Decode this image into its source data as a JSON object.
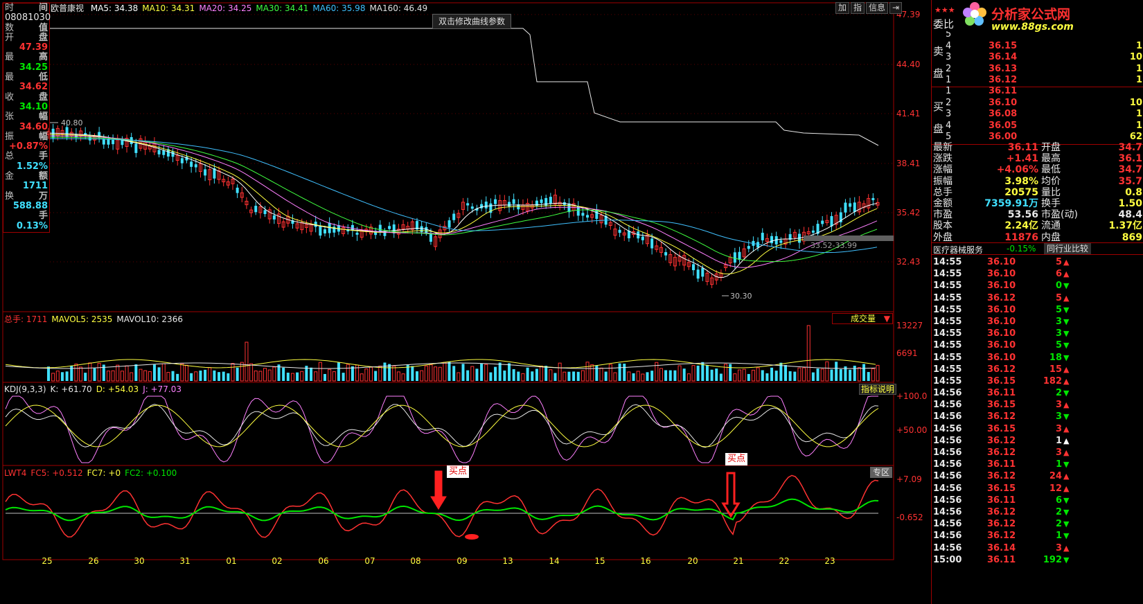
{
  "header": {
    "stock_name": "欧普康视",
    "ma_items": [
      {
        "label": "MA5: 34.38",
        "color": "#ffffff"
      },
      {
        "label": "MA10: 34.31",
        "color": "#ffff40"
      },
      {
        "label": "MA20: 34.25",
        "color": "#ff80ff"
      },
      {
        "label": "MA30: 34.41",
        "color": "#40ff40"
      },
      {
        "label": "MA60: 35.98",
        "color": "#40c0ff"
      },
      {
        "label": "MA160: 46.49",
        "color": "#e0e0e0"
      }
    ],
    "buttons": [
      "加",
      "指",
      "信息"
    ],
    "tooltip": "双击修改曲线参数"
  },
  "info_panel": {
    "rows": [
      {
        "l": "时",
        "r": "间",
        "lc": "#c0c0c0",
        "rc": "#c0c0c0"
      },
      {
        "l": "08081030",
        "r": "",
        "lc": "#e8e8e8",
        "rc": "#c0c0c0"
      },
      {
        "l": "数",
        "r": "值",
        "lc": "#c0c0c0",
        "rc": "#c0c0c0"
      },
      {
        "l": "开",
        "r": "盘",
        "lc": "#c0c0c0",
        "rc": "#c0c0c0"
      },
      {
        "l": "",
        "r": "47.39",
        "lc": "#c0c0c0",
        "rc": "#ff3232"
      },
      {
        "l": "最",
        "r": "高",
        "lc": "#c0c0c0",
        "rc": "#c0c0c0"
      },
      {
        "l": "",
        "r": "34.25",
        "lc": "#c0c0c0",
        "rc": "#00e600"
      },
      {
        "l": "最",
        "r": "低",
        "lc": "#c0c0c0",
        "rc": "#c0c0c0"
      },
      {
        "l": "",
        "r": "34.62",
        "lc": "#c0c0c0",
        "rc": "#ff3232"
      },
      {
        "l": "收",
        "r": "盘",
        "lc": "#c0c0c0",
        "rc": "#c0c0c0"
      },
      {
        "l": "",
        "r": "34.10",
        "lc": "#c0c0c0",
        "rc": "#00e600"
      },
      {
        "l": "张",
        "r": "幅",
        "lc": "#c0c0c0",
        "rc": "#c0c0c0"
      },
      {
        "l": "",
        "r": "34.60",
        "lc": "#c0c0c0",
        "rc": "#ff3232"
      },
      {
        "l": "振",
        "r": "幅",
        "lc": "#c0c0c0",
        "rc": "#c0c0c0"
      },
      {
        "l": "",
        "r": "+0.87%",
        "lc": "#c0c0c0",
        "rc": "#ff3232"
      },
      {
        "l": "总",
        "r": "手",
        "lc": "#c0c0c0",
        "rc": "#c0c0c0"
      },
      {
        "l": "",
        "r": "1.52%",
        "lc": "#c0c0c0",
        "rc": "#40e0ff"
      },
      {
        "l": "金",
        "r": "额",
        "lc": "#c0c0c0",
        "rc": "#c0c0c0"
      },
      {
        "l": "",
        "r": "1711",
        "lc": "#c0c0c0",
        "rc": "#40e0ff"
      },
      {
        "l": "换",
        "r": "万",
        "lc": "#c0c0c0",
        "rc": "#c0c0c0"
      },
      {
        "l": "",
        "r": "588.88",
        "lc": "#c0c0c0",
        "rc": "#40e0ff"
      },
      {
        "l": "",
        "r": "手",
        "lc": "#c0c0c0",
        "rc": "#c0c0c0"
      },
      {
        "l": "",
        "r": "0.13%",
        "lc": "#c0c0c0",
        "rc": "#40e0ff"
      }
    ]
  },
  "price_axis": [
    "47.39",
    "44.40",
    "41.41",
    "38.41",
    "35.42",
    "32.43"
  ],
  "annotations": {
    "high": "40.80",
    "low": "30.30",
    "range": "33.52-33.99"
  },
  "volume": {
    "header": [
      {
        "t": "总手: 1711",
        "c": "#ff3232"
      },
      {
        "t": "MAVOL5: 2535",
        "c": "#ffff40"
      },
      {
        "t": "MAVOL10: 2366",
        "c": "#e8e8e8"
      }
    ],
    "dropdown": "成交量",
    "axis": [
      "13227",
      "6691"
    ]
  },
  "kdj": {
    "header": [
      {
        "t": "KDJ(9,3,3)",
        "c": "#e8e8e8"
      },
      {
        "t": "K: +61.70",
        "c": "#e8e8e8"
      },
      {
        "t": "D: +54.03",
        "c": "#ffff40"
      },
      {
        "t": "J: +77.03",
        "c": "#ff80ff"
      }
    ],
    "button": "指标说明",
    "axis": [
      "+100.0",
      "+50.00"
    ]
  },
  "lwt": {
    "header": [
      {
        "t": "LWT4",
        "c": "#ff3232"
      },
      {
        "t": "FC5: +0.512",
        "c": "#ff3232"
      },
      {
        "t": "FC7: +0",
        "c": "#ffff40"
      },
      {
        "t": "FC2: +0.100",
        "c": "#00e600"
      }
    ],
    "button": "专区",
    "axis": [
      "+7.09",
      "-0.652"
    ],
    "buy_label": "买点"
  },
  "dates": [
    "25",
    "26",
    "30",
    "31",
    "01",
    "02",
    "06",
    "07",
    "08",
    "09",
    "13",
    "14",
    "15",
    "16",
    "20",
    "21",
    "22",
    "23"
  ],
  "right_panel": {
    "logo_text": "分析家公式网",
    "logo_url": "www.88gs.com",
    "weibi": "委比",
    "sell_label": [
      "卖",
      "盘"
    ],
    "buy_label": [
      "买",
      "盘"
    ],
    "sells": [
      {
        "n": "5",
        "p": "",
        "v": ""
      },
      {
        "n": "4",
        "p": "36.15",
        "v": "1"
      },
      {
        "n": "3",
        "p": "36.14",
        "v": "10"
      },
      {
        "n": "2",
        "p": "36.13",
        "v": "1"
      },
      {
        "n": "1",
        "p": "36.12",
        "v": "1"
      }
    ],
    "buys": [
      {
        "n": "1",
        "p": "36.11",
        "v": ""
      },
      {
        "n": "2",
        "p": "36.10",
        "v": "10"
      },
      {
        "n": "3",
        "p": "36.08",
        "v": "1"
      },
      {
        "n": "4",
        "p": "36.05",
        "v": "1"
      },
      {
        "n": "5",
        "p": "36.00",
        "v": "62"
      }
    ],
    "stats": [
      {
        "a": "最新",
        "av": "36.11",
        "avc": "#ff3232",
        "b": "开盘",
        "bv": "34.7",
        "bvc": "#ff3232"
      },
      {
        "a": "涨跌",
        "av": "+1.41",
        "avc": "#ff3232",
        "b": "最高",
        "bv": "36.1",
        "bvc": "#ff3232"
      },
      {
        "a": "涨幅",
        "av": "+4.06%",
        "avc": "#ff3232",
        "b": "最低",
        "bv": "34.7",
        "bvc": "#ff3232"
      },
      {
        "a": "振幅",
        "av": "3.98%",
        "avc": "#ffff40",
        "b": "均价",
        "bv": "35.7",
        "bvc": "#ff3232"
      },
      {
        "a": "总手",
        "av": "20575",
        "avc": "#ffff40",
        "b": "量比",
        "bv": "0.8",
        "bvc": "#ffff40"
      },
      {
        "a": "金额",
        "av": "7359.91万",
        "avc": "#40e0ff",
        "b": "换手",
        "bv": "1.50",
        "bvc": "#ffff40"
      },
      {
        "a": "市盈",
        "av": "53.56",
        "avc": "#e8e8e8",
        "b": "市盈(动)",
        "bv": "48.4",
        "bvc": "#e8e8e8"
      },
      {
        "a": "股本",
        "av": "2.24亿",
        "avc": "#ffff40",
        "b": "流通",
        "bv": "1.37亿",
        "bvc": "#ffff40"
      },
      {
        "a": "外盘",
        "av": "11876",
        "avc": "#ff3232",
        "b": "内盘",
        "bv": "869",
        "bvc": "#ffff40"
      }
    ],
    "sector": {
      "name": "医疗器械服务",
      "pct": "-0.15%",
      "button": "同行业比较"
    },
    "ticks": [
      {
        "t": "14:55",
        "p": "36.10",
        "v": "5",
        "d": "up"
      },
      {
        "t": "14:55",
        "p": "36.10",
        "v": "6",
        "d": "up"
      },
      {
        "t": "14:55",
        "p": "36.10",
        "v": "0",
        "d": "down"
      },
      {
        "t": "14:55",
        "p": "36.12",
        "v": "5",
        "d": "up"
      },
      {
        "t": "14:55",
        "p": "36.10",
        "v": "5",
        "d": "down"
      },
      {
        "t": "14:55",
        "p": "36.10",
        "v": "3",
        "d": "down"
      },
      {
        "t": "14:55",
        "p": "36.10",
        "v": "3",
        "d": "down"
      },
      {
        "t": "14:55",
        "p": "36.10",
        "v": "5",
        "d": "down"
      },
      {
        "t": "14:55",
        "p": "36.10",
        "v": "18",
        "d": "down"
      },
      {
        "t": "14:55",
        "p": "36.12",
        "v": "15",
        "d": "up"
      },
      {
        "t": "14:55",
        "p": "36.15",
        "v": "182",
        "d": "up"
      },
      {
        "t": "14:56",
        "p": "36.11",
        "v": "2",
        "d": "down"
      },
      {
        "t": "14:56",
        "p": "36.15",
        "v": "3",
        "d": "up"
      },
      {
        "t": "14:56",
        "p": "36.12",
        "v": "3",
        "d": "down"
      },
      {
        "t": "14:56",
        "p": "36.15",
        "v": "3",
        "d": "up"
      },
      {
        "t": "14:56",
        "p": "36.12",
        "v": "1",
        "d": "neutral"
      },
      {
        "t": "14:56",
        "p": "36.12",
        "v": "3",
        "d": "up"
      },
      {
        "t": "14:56",
        "p": "36.11",
        "v": "1",
        "d": "down"
      },
      {
        "t": "14:56",
        "p": "36.12",
        "v": "24",
        "d": "up"
      },
      {
        "t": "14:56",
        "p": "36.15",
        "v": "12",
        "d": "up"
      },
      {
        "t": "14:56",
        "p": "36.11",
        "v": "6",
        "d": "down"
      },
      {
        "t": "14:56",
        "p": "36.12",
        "v": "2",
        "d": "down"
      },
      {
        "t": "14:56",
        "p": "36.12",
        "v": "2",
        "d": "down"
      },
      {
        "t": "14:56",
        "p": "36.12",
        "v": "1",
        "d": "down"
      },
      {
        "t": "14:56",
        "p": "36.14",
        "v": "3",
        "d": "up"
      },
      {
        "t": "15:00",
        "p": "36.11",
        "v": "192",
        "d": "down"
      }
    ]
  }
}
